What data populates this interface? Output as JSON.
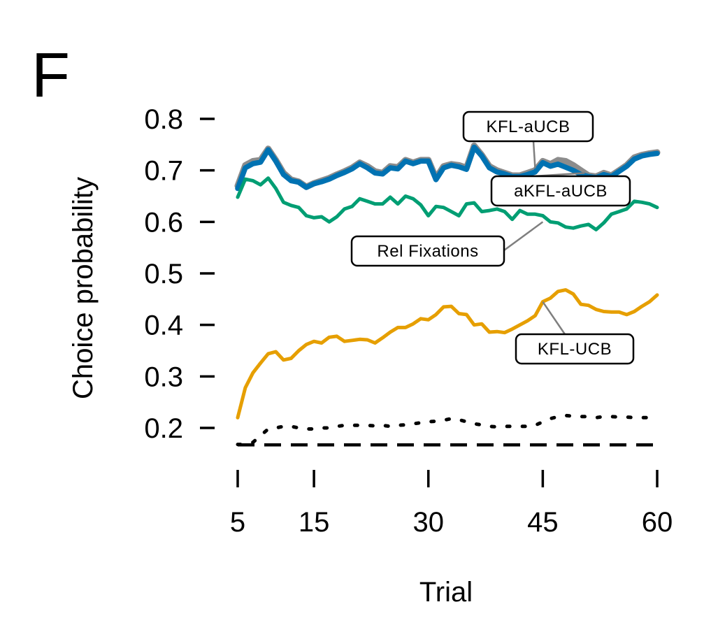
{
  "panel_label": "F",
  "chart_data": {
    "type": "line",
    "xlabel": "Trial",
    "ylabel": "Choice probability",
    "xlim": [
      5,
      60
    ],
    "ylim": [
      0.165,
      0.8
    ],
    "xticks": [
      5,
      15,
      30,
      45,
      60
    ],
    "xtick_labels": [
      "5",
      "15",
      "30",
      "45",
      "60"
    ],
    "yticks": [
      0.2,
      0.3,
      0.4,
      0.5,
      0.6,
      0.7,
      0.8
    ],
    "ytick_labels": [
      "0.2",
      "0.3",
      "0.4",
      "0.5",
      "0.6",
      "0.7",
      "0.8"
    ],
    "grid": false,
    "series": [
      {
        "key": "akfl_aucb",
        "name": "aKFL-aUCB",
        "color": "#8c8c8c",
        "style": "solid",
        "x": [
          5,
          6,
          7,
          8,
          9,
          10,
          11,
          12,
          13,
          14,
          15,
          16,
          17,
          18,
          19,
          20,
          21,
          22,
          23,
          24,
          25,
          26,
          27,
          28,
          29,
          30,
          31,
          32,
          33,
          34,
          35,
          36,
          37,
          38,
          39,
          40,
          41,
          42,
          43,
          44,
          45,
          46,
          47,
          48,
          49,
          50,
          51,
          52,
          53,
          54,
          55,
          56,
          57,
          58,
          59,
          60
        ],
        "values": [
          0.67,
          0.71,
          0.718,
          0.72,
          0.742,
          0.72,
          0.695,
          0.682,
          0.678,
          0.668,
          0.675,
          0.68,
          0.685,
          0.692,
          0.698,
          0.705,
          0.715,
          0.708,
          0.698,
          0.695,
          0.708,
          0.706,
          0.72,
          0.715,
          0.72,
          0.72,
          0.685,
          0.708,
          0.712,
          0.71,
          0.705,
          0.748,
          0.73,
          0.708,
          0.7,
          0.695,
          0.69,
          0.69,
          0.695,
          0.7,
          0.718,
          0.712,
          0.72,
          0.718,
          0.71,
          0.7,
          0.69,
          0.688,
          0.695,
          0.69,
          0.7,
          0.71,
          0.725,
          0.73,
          0.733,
          0.735
        ]
      },
      {
        "key": "kfl_aucb",
        "name": "KFL-aUCB",
        "color": "#0072b2",
        "style": "solid",
        "x": [
          5,
          6,
          7,
          8,
          9,
          10,
          11,
          12,
          13,
          14,
          15,
          16,
          17,
          18,
          19,
          20,
          21,
          22,
          23,
          24,
          25,
          26,
          27,
          28,
          29,
          30,
          31,
          32,
          33,
          34,
          35,
          36,
          37,
          38,
          39,
          40,
          41,
          42,
          43,
          44,
          45,
          46,
          47,
          48,
          49,
          50,
          51,
          52,
          53,
          54,
          55,
          56,
          57,
          58,
          59,
          60
        ],
        "values": [
          0.665,
          0.705,
          0.713,
          0.716,
          0.74,
          0.718,
          0.692,
          0.68,
          0.677,
          0.667,
          0.674,
          0.678,
          0.683,
          0.69,
          0.696,
          0.703,
          0.713,
          0.705,
          0.695,
          0.693,
          0.705,
          0.703,
          0.718,
          0.713,
          0.718,
          0.718,
          0.682,
          0.705,
          0.71,
          0.707,
          0.702,
          0.745,
          0.728,
          0.705,
          0.697,
          0.693,
          0.688,
          0.688,
          0.692,
          0.697,
          0.715,
          0.708,
          0.712,
          0.706,
          0.7,
          0.692,
          0.688,
          0.686,
          0.692,
          0.688,
          0.698,
          0.708,
          0.722,
          0.728,
          0.731,
          0.733
        ]
      },
      {
        "key": "rel_fixations",
        "name": "Rel Fixations",
        "color": "#009e73",
        "style": "solid",
        "x": [
          5,
          6,
          7,
          8,
          9,
          10,
          11,
          12,
          13,
          14,
          15,
          16,
          17,
          18,
          19,
          20,
          21,
          22,
          23,
          24,
          25,
          26,
          27,
          28,
          29,
          30,
          31,
          32,
          33,
          34,
          35,
          36,
          37,
          38,
          39,
          40,
          41,
          42,
          43,
          44,
          45,
          46,
          47,
          48,
          49,
          50,
          51,
          52,
          53,
          54,
          55,
          56,
          57,
          58,
          59,
          60
        ],
        "values": [
          0.648,
          0.683,
          0.68,
          0.672,
          0.685,
          0.665,
          0.638,
          0.632,
          0.628,
          0.612,
          0.608,
          0.61,
          0.6,
          0.61,
          0.625,
          0.63,
          0.645,
          0.64,
          0.635,
          0.635,
          0.648,
          0.635,
          0.65,
          0.645,
          0.633,
          0.612,
          0.63,
          0.628,
          0.62,
          0.612,
          0.635,
          0.637,
          0.62,
          0.622,
          0.625,
          0.62,
          0.605,
          0.622,
          0.615,
          0.615,
          0.612,
          0.6,
          0.598,
          0.59,
          0.588,
          0.592,
          0.595,
          0.585,
          0.598,
          0.615,
          0.62,
          0.625,
          0.64,
          0.638,
          0.635,
          0.628
        ]
      },
      {
        "key": "kfl_ucb",
        "name": "KFL-UCB",
        "color": "#e69f00",
        "style": "solid",
        "x": [
          5,
          6,
          7,
          8,
          9,
          10,
          11,
          12,
          13,
          14,
          15,
          16,
          17,
          18,
          19,
          20,
          21,
          22,
          23,
          24,
          25,
          26,
          27,
          28,
          29,
          30,
          31,
          32,
          33,
          34,
          35,
          36,
          37,
          38,
          39,
          40,
          41,
          42,
          43,
          44,
          45,
          46,
          47,
          48,
          49,
          50,
          51,
          52,
          53,
          54,
          55,
          56,
          57,
          58,
          59,
          60
        ],
        "values": [
          0.22,
          0.278,
          0.307,
          0.326,
          0.344,
          0.348,
          0.332,
          0.335,
          0.35,
          0.362,
          0.368,
          0.365,
          0.376,
          0.378,
          0.368,
          0.37,
          0.372,
          0.371,
          0.365,
          0.375,
          0.386,
          0.395,
          0.395,
          0.402,
          0.412,
          0.41,
          0.42,
          0.435,
          0.436,
          0.422,
          0.42,
          0.4,
          0.402,
          0.386,
          0.387,
          0.385,
          0.392,
          0.4,
          0.408,
          0.418,
          0.445,
          0.452,
          0.465,
          0.468,
          0.46,
          0.44,
          0.438,
          0.43,
          0.426,
          0.425,
          0.425,
          0.42,
          0.426,
          0.436,
          0.445,
          0.458
        ]
      },
      {
        "key": "dotted_baseline",
        "name": "",
        "color": "#000000",
        "style": "dotted",
        "x": [
          5,
          6,
          7,
          8,
          9,
          10,
          11,
          12,
          13,
          14,
          15,
          16,
          17,
          18,
          19,
          20,
          21,
          22,
          23,
          24,
          25,
          26,
          27,
          28,
          29,
          30,
          31,
          32,
          33,
          34,
          35,
          36,
          37,
          38,
          39,
          40,
          41,
          42,
          43,
          44,
          45,
          46,
          47,
          48,
          49,
          50,
          51,
          52,
          53,
          54,
          55,
          56,
          57,
          58,
          59,
          60
        ],
        "values": [
          0.168,
          0.168,
          0.172,
          0.185,
          0.198,
          0.2,
          0.203,
          0.203,
          0.2,
          0.198,
          0.198,
          0.2,
          0.2,
          0.203,
          0.205,
          0.205,
          0.205,
          0.205,
          0.204,
          0.205,
          0.203,
          0.205,
          0.206,
          0.208,
          0.21,
          0.212,
          0.213,
          0.215,
          0.218,
          0.216,
          0.212,
          0.208,
          0.206,
          0.203,
          0.202,
          0.203,
          0.203,
          0.203,
          0.203,
          0.205,
          0.212,
          0.218,
          0.222,
          0.224,
          0.223,
          0.222,
          0.222,
          0.22,
          0.222,
          0.222,
          0.221,
          0.221,
          0.22,
          0.22,
          0.22,
          0.22
        ]
      },
      {
        "key": "chance",
        "name": "",
        "color": "#000000",
        "style": "dashed",
        "x": [
          5,
          60
        ],
        "values": [
          0.167,
          0.167
        ]
      }
    ],
    "annotations": [
      {
        "text": "KFL-aUCB",
        "target_series": "kfl_aucb",
        "x": 44.0,
        "y": 0.704
      },
      {
        "text": "aKFL-aUCB",
        "target_series": "akfl_aucb",
        "x": 50.5,
        "y": 0.695
      },
      {
        "text": "Rel Fixations",
        "target_series": "rel_fixations",
        "x": 45.0,
        "y": 0.6
      },
      {
        "text": "KFL-UCB",
        "target_series": "kfl_ucb",
        "x": 45.0,
        "y": 0.445
      }
    ]
  }
}
